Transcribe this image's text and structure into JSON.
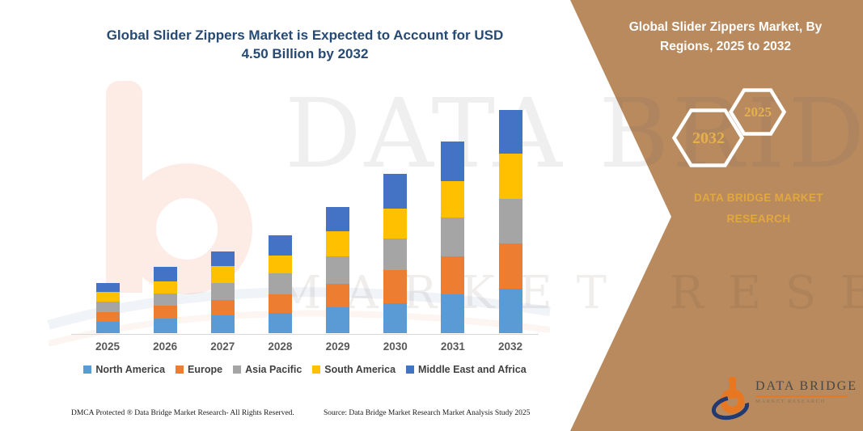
{
  "chart": {
    "title": "Global Slider Zippers Market is Expected to Account for USD 4.50 Billion by 2032"
  },
  "chart_data": {
    "type": "bar",
    "stacked": true,
    "title": "Global Slider Zippers Market is Expected to Account for USD 4.50 Billion by 2032",
    "unit": "USD Billion",
    "categories": [
      "2025",
      "2026",
      "2027",
      "2028",
      "2029",
      "2030",
      "2031",
      "2032"
    ],
    "series": [
      {
        "name": "North America",
        "color": "#5B9BD5",
        "values": [
          0.23,
          0.29,
          0.36,
          0.41,
          0.52,
          0.6,
          0.78,
          0.89
        ]
      },
      {
        "name": "Europe",
        "color": "#ED7D31",
        "values": [
          0.2,
          0.26,
          0.31,
          0.38,
          0.47,
          0.67,
          0.77,
          0.92
        ]
      },
      {
        "name": "Asia Pacific",
        "color": "#A5A5A5",
        "values": [
          0.2,
          0.25,
          0.34,
          0.42,
          0.56,
          0.64,
          0.79,
          0.9
        ]
      },
      {
        "name": "South America",
        "color": "#FFC000",
        "values": [
          0.2,
          0.25,
          0.34,
          0.36,
          0.51,
          0.61,
          0.73,
          0.91
        ]
      },
      {
        "name": "Middle East and Africa",
        "color": "#4472C4",
        "values": [
          0.18,
          0.28,
          0.29,
          0.41,
          0.49,
          0.7,
          0.79,
          0.88
        ]
      }
    ],
    "totals": [
      1.01,
      1.33,
      1.64,
      1.98,
      2.55,
      3.22,
      3.86,
      4.5
    ],
    "xlabel": "",
    "ylabel": "",
    "ylim": [
      0,
      4.6
    ],
    "grid": false,
    "legend_position": "bottom"
  },
  "side_panel": {
    "header": "Global Slider Zippers Market, By Regions, 2025 to 2032",
    "hexagon_large_label": "2032",
    "hexagon_small_label": "2025",
    "brand_text": "DATA BRIDGE MARKET RESEARCH",
    "background_color": "#B88A5E",
    "gold_color": "#E2A83E"
  },
  "footer": {
    "dmca": "DMCA Protected ® Data Bridge Market Research-  All Rights Reserved.",
    "source": "Source: Data Bridge Market Research  Market Analysis Study 2025"
  },
  "logo": {
    "name": "DATA BRIDGE",
    "subtitle": "MARKET RESEARCH",
    "orange": "#E87722",
    "navy": "#223A70"
  },
  "watermark": {
    "big_text": "DATA BRIDGE",
    "spaced_text": "MARKET RESEARCH"
  }
}
